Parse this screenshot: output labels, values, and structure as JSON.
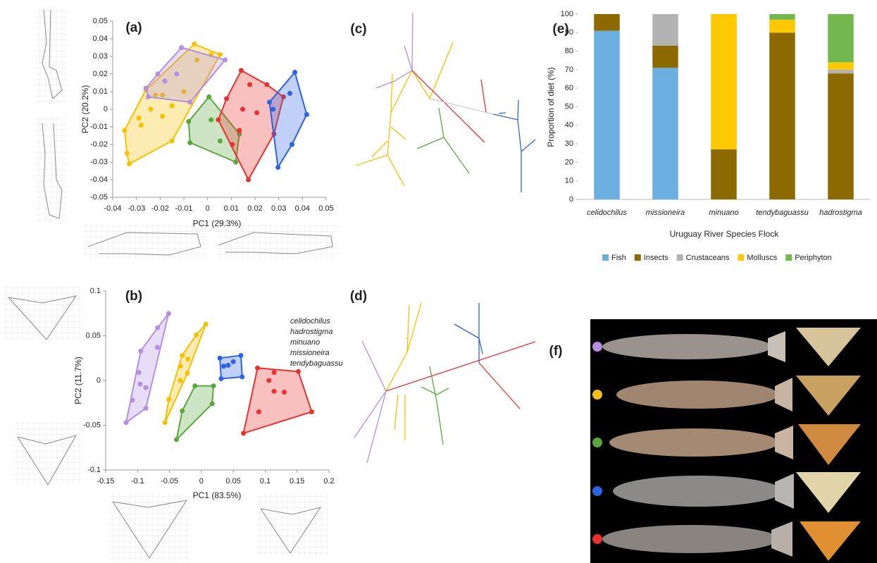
{
  "chart_data": [
    {
      "type": "scatter",
      "label": "(a)",
      "xlabel": "PC1 (29.3%)",
      "ylabel": "PC2 (20.2%)",
      "xlim": [
        -0.04,
        0.05
      ],
      "xticks": [
        -0.04,
        -0.03,
        -0.02,
        -0.01,
        0,
        0.01,
        0.02,
        0.03,
        0.04,
        0.05
      ],
      "ylim": [
        -0.05,
        0.05
      ],
      "yticks": [
        -0.05,
        -0.04,
        -0.03,
        -0.02,
        -0.01,
        0,
        0.01,
        0.02,
        0.03,
        0.04,
        0.05
      ],
      "series": [
        {
          "color": "#f5c000",
          "x": [
            -0.034,
            -0.033,
            -0.035,
            -0.028,
            -0.024,
            -0.019,
            -0.015,
            -0.015,
            -0.0056,
            0.0015,
            0.0053,
            -0.022,
            -0.026,
            -0.01,
            -0.0045,
            -0.019,
            -0.029
          ],
          "y": [
            -0.025,
            -0.031,
            -0.012,
            -0.009,
            0,
            0.008,
            0.002,
            -0.018,
            0.037,
            0.031,
            0.031,
            0.008,
            0.011,
            0.01,
            0.028,
            -0.004,
            -0.005
          ]
        },
        {
          "color": "#b48ee0",
          "x": [
            -0.021,
            -0.011,
            0.0074,
            -0.0074,
            -0.025,
            -0.026,
            -0.018,
            -0.013
          ],
          "y": [
            0.02,
            0.035,
            0.028,
            0.004,
            0.007,
            0.012,
            0.016,
            0.02
          ]
        },
        {
          "color": "#5aa83c",
          "x": [
            -0.008,
            -0.0074,
            0.0006,
            0.0134,
            0.0119,
            0.0053,
            0.0015
          ],
          "y": [
            -0.007,
            -0.019,
            0.007,
            -0.014,
            -0.03,
            -0.018,
            -0.006
          ]
        },
        {
          "color": "#e8322f",
          "x": [
            0.0142,
            0.0178,
            0.025,
            0.032,
            0.028,
            0.0172,
            0.0104,
            0.008,
            0.0148,
            0.0208,
            0.0045,
            0.0134
          ],
          "y": [
            0.022,
            0.014,
            0.014,
            0.007,
            -0.014,
            -0.04,
            -0.02,
            0.006,
            0,
            -0.002,
            -0.006,
            -0.012
          ]
        },
        {
          "color": "#2d63e0",
          "x": [
            0.0368,
            0.0347,
            0.0418,
            0.0356,
            0.0297,
            0.0261,
            0.0276
          ],
          "y": [
            0.021,
            0.009,
            -0.003,
            -0.02,
            -0.033,
            0.004,
            0
          ]
        }
      ]
    },
    {
      "type": "scatter",
      "label": "(b)",
      "xlabel": "PC1 (83.5%)",
      "ylabel": "PC2 (11.7%)",
      "legend": "upper right",
      "xlim": [
        -0.15,
        0.2
      ],
      "xticks": [
        -0.15,
        -0.1,
        -0.05,
        0,
        0.05,
        0.1,
        0.15,
        0.2
      ],
      "ylim": [
        -0.1,
        0.1
      ],
      "yticks": [
        -0.1,
        -0.05,
        0,
        0.05,
        0.1
      ],
      "series": [
        {
          "name": "celidochilus",
          "color": "#b48ee0",
          "x": [
            -0.0513,
            -0.0686,
            -0.118,
            -0.087,
            -0.098,
            -0.095,
            -0.108,
            -0.087,
            -0.096,
            -0.069
          ],
          "y": [
            0.0748,
            0.059,
            -0.047,
            -0.031,
            0.009,
            0.033,
            -0.022,
            -0.008,
            -0.004,
            0.037
          ]
        },
        {
          "name": "hadrostigma",
          "color": "#2d63e0",
          "x": [
            0.029,
            0.062,
            0.064,
            0.035,
            0.042,
            0.05,
            0.031
          ],
          "y": [
            0.025,
            0.028,
            0.004,
            0.016,
            0.017,
            0.021,
            0.002
          ]
        },
        {
          "name": "minuano",
          "color": "#e8322f",
          "x": [
            0.066,
            0.088,
            0.152,
            0.173,
            0.114,
            0.13,
            0.09,
            0.106,
            0.114
          ],
          "y": [
            -0.059,
            0.014,
            0.01,
            -0.035,
            -0.012,
            -0.013,
            -0.035,
            0,
            0.009
          ]
        },
        {
          "name": "missioneira",
          "color": "#f5c000",
          "x": [
            0.007,
            -0.057,
            -0.051,
            -0.033,
            -0.021,
            -0.033,
            -0.022,
            -0.008,
            -0.03
          ],
          "y": [
            0.063,
            -0.047,
            -0.021,
            0.016,
            0.024,
            0,
            0.008,
            0.051,
            0.028
          ]
        },
        {
          "name": "tendybaguassu",
          "color": "#5aa83c",
          "x": [
            -0.039,
            -0.01,
            0.019,
            0.017,
            -0.03
          ],
          "y": [
            -0.066,
            -0.006,
            -0.006,
            -0.026,
            -0.034
          ]
        }
      ]
    },
    {
      "type": "stacked-bar",
      "label": "(e)",
      "xlabel": "Uruguay River Species Flock",
      "ylabel": "Proportion of diet (%)",
      "legend": "bottom",
      "categories": [
        "celidochilus",
        "missioneira",
        "minuano",
        "tendybaguassu",
        "hadrostigma"
      ],
      "ylim": [
        0,
        100
      ],
      "yticks": [
        0,
        10,
        20,
        30,
        40,
        50,
        60,
        70,
        80,
        90,
        100
      ],
      "series": [
        {
          "name": "Fish",
          "color": "#6baee0",
          "values": [
            91,
            71,
            0,
            0,
            0
          ]
        },
        {
          "name": "Insects",
          "color": "#8c6a00",
          "values": [
            9,
            12,
            27,
            90,
            68
          ]
        },
        {
          "name": "Crustaceans",
          "color": "#b3b3b3",
          "values": [
            0,
            17,
            0,
            0,
            2
          ]
        },
        {
          "name": "Molluscs",
          "color": "#ffc800",
          "values": [
            0,
            0,
            73,
            7,
            4
          ]
        },
        {
          "name": "Periphyton",
          "color": "#72b84e",
          "values": [
            0,
            0,
            0,
            3,
            26
          ]
        }
      ]
    }
  ],
  "panel_labels": [
    "(c)",
    "(d)",
    "(f)"
  ]
}
